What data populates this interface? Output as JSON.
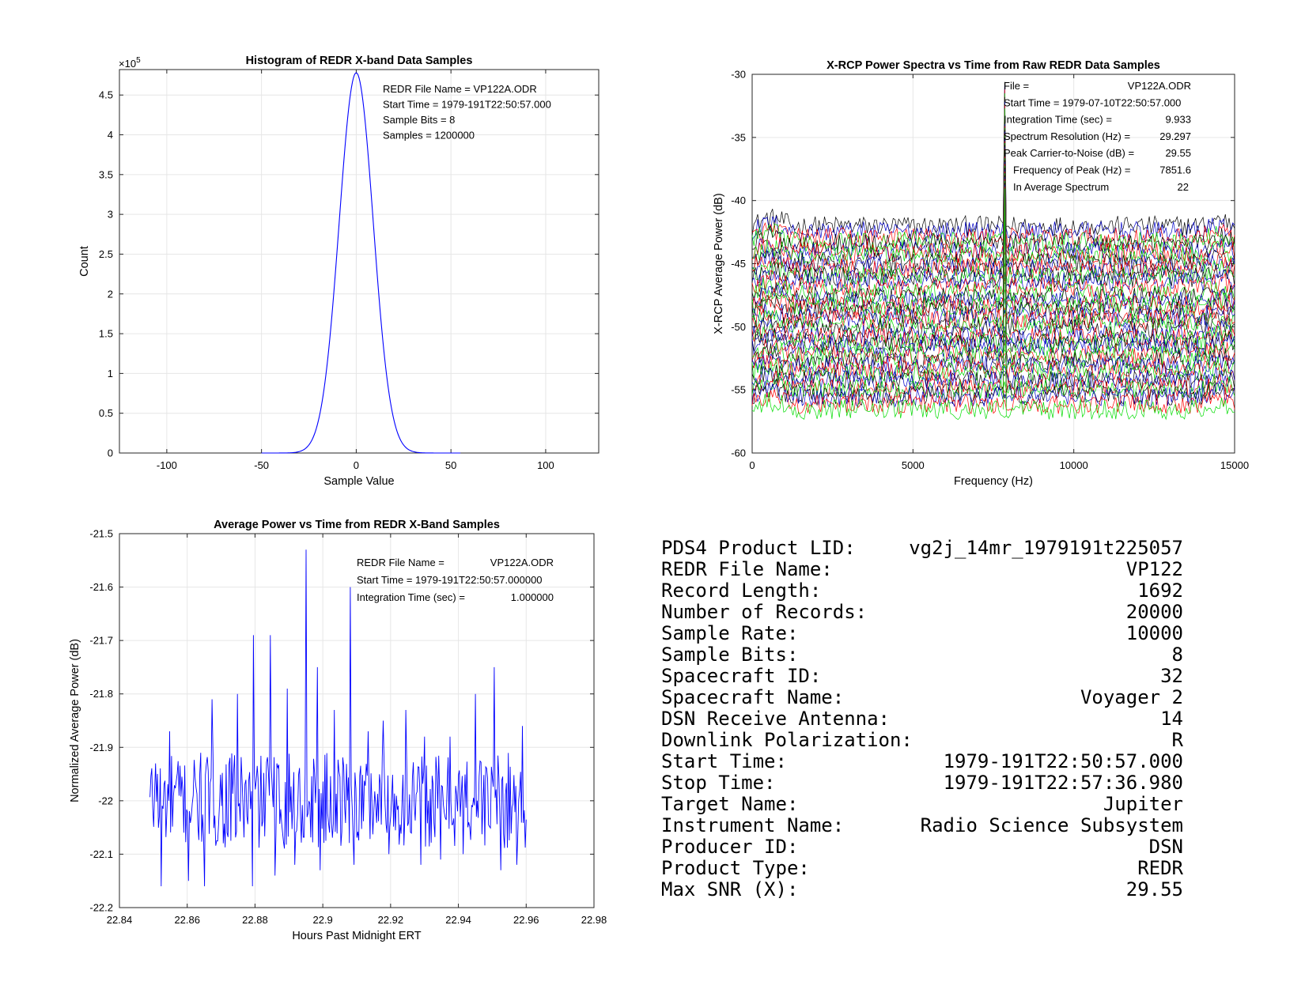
{
  "colors": {
    "line_blue": "#0000ff",
    "grid": "#e6e6e6",
    "axis": "#262626"
  },
  "chart_data": [
    {
      "type": "line",
      "title": "Histogram of REDR X-band Data Samples",
      "xlabel": "Sample Value",
      "ylabel": "Count",
      "exponent_label": "×10",
      "exponent_power": "5",
      "xlim": [
        -125,
        128
      ],
      "ylim": [
        0,
        4.82
      ],
      "xticks": [
        -100,
        -50,
        0,
        50,
        100
      ],
      "yticks": [
        0,
        0.5,
        1,
        1.5,
        2,
        2.5,
        3,
        3.5,
        4,
        4.5
      ],
      "grid": true,
      "gaussian": {
        "peak": 4.78,
        "center": 0,
        "sigma": 9.0,
        "range": [
          -50,
          55
        ]
      },
      "annotations": [
        "REDR File Name = VP122A.ODR",
        "Start Time = 1979-191T22:50:57.000",
        "Sample Bits = 8",
        "Samples = 1200000"
      ]
    },
    {
      "type": "line",
      "title": "X-RCP Power Spectra vs Time from Raw REDR Data Samples",
      "xlabel": "Frequency (Hz)",
      "ylabel": "X-RCP Average Power (dB)",
      "xlim": [
        0,
        15000
      ],
      "ylim": [
        -60,
        -30
      ],
      "xticks": [
        0,
        5000,
        10000,
        15000
      ],
      "yticks": [
        -60,
        -55,
        -50,
        -45,
        -40,
        -35,
        -30
      ],
      "grid": true,
      "series_count": 44,
      "series_colors": [
        "#000000",
        "#0000c8",
        "#ff0000",
        "#00dd00"
      ],
      "spectra_top_level": -42.0,
      "spectra_step": 0.33,
      "peak_frequency": 7851.6,
      "peak_level": -30.6,
      "annotations": [
        {
          "label": "File =",
          "value": "VP122A.ODR"
        },
        {
          "label": "Start Time = 1979-07-10T22:50:57.000",
          "value": ""
        },
        {
          "label": "Integration Time (sec) =",
          "value": "9.933"
        },
        {
          "label": "Spectrum Resolution (Hz) =",
          "value": "29.297"
        },
        {
          "label": "Peak Carrier-to-Noise (dB) =",
          "value": "29.55"
        },
        {
          "label": "Frequency of Peak (Hz) =",
          "value": "7851.6"
        },
        {
          "label": "In Average Spectrum",
          "value": "22"
        }
      ]
    },
    {
      "type": "line",
      "title": "Average Power vs Time from REDR X-Band Samples",
      "xlabel": "Hours Past Midnight ERT",
      "ylabel": "Normalized Average Power (dB)",
      "xlim": [
        22.84,
        22.98
      ],
      "ylim": [
        -22.2,
        -21.5
      ],
      "xticks": [
        22.84,
        22.86,
        22.88,
        22.9,
        22.92,
        22.94,
        22.96,
        22.98
      ],
      "yticks": [
        -22.2,
        -22.1,
        -22,
        -21.9,
        -21.8,
        -21.7,
        -21.6,
        -21.5
      ],
      "grid": true,
      "x_range": [
        22.849,
        22.96
      ],
      "baseline": -22.0,
      "spikes": [
        [
          22.8508,
          -21.93
        ],
        [
          22.8548,
          -21.87
        ],
        [
          22.8672,
          -21.81
        ],
        [
          22.8748,
          -21.8
        ],
        [
          22.8795,
          -21.69
        ],
        [
          22.8845,
          -21.69
        ],
        [
          22.8895,
          -21.79
        ],
        [
          22.8952,
          -21.53
        ],
        [
          22.8985,
          -21.75
        ],
        [
          22.9035,
          -21.83
        ],
        [
          22.908,
          -21.6
        ],
        [
          22.9093,
          -21.61
        ],
        [
          22.9135,
          -21.87
        ],
        [
          22.9178,
          -21.85
        ],
        [
          22.9245,
          -21.83
        ],
        [
          22.93,
          -21.88
        ],
        [
          22.9375,
          -21.88
        ],
        [
          22.945,
          -21.8
        ],
        [
          22.9505,
          -21.75
        ],
        [
          22.9588,
          -21.86
        ]
      ],
      "dips": [
        [
          22.8522,
          -22.16
        ],
        [
          22.8605,
          -22.15
        ],
        [
          22.8652,
          -22.16
        ],
        [
          22.8792,
          -22.16
        ],
        [
          22.8858,
          -22.14
        ],
        [
          22.8918,
          -22.12
        ],
        [
          22.8992,
          -22.13
        ],
        [
          22.9092,
          -22.12
        ],
        [
          22.9195,
          -22.1
        ],
        [
          22.9288,
          -22.12
        ],
        [
          22.9348,
          -22.11
        ],
        [
          22.9415,
          -22.1
        ],
        [
          22.9525,
          -22.13
        ],
        [
          22.9572,
          -22.12
        ]
      ],
      "annotations": [
        {
          "label": "REDR File Name =",
          "value": "VP122A.ODR"
        },
        {
          "label": "Start Time = 1979-191T22:50:57.000000",
          "value": ""
        },
        {
          "label": "Integration Time (sec) =",
          "value": "1.000000"
        }
      ]
    }
  ],
  "summary": [
    {
      "label": "PDS4 Product LID:",
      "value": "vg2j_14mr_1979191t225057"
    },
    {
      "label": "REDR File Name:",
      "value": "VP122"
    },
    {
      "label": "Record Length:",
      "value": "1692"
    },
    {
      "label": "Number of Records:",
      "value": "20000"
    },
    {
      "label": "Sample Rate:",
      "value": "10000"
    },
    {
      "label": "Sample Bits:",
      "value": "8"
    },
    {
      "label": "Spacecraft ID:",
      "value": "32"
    },
    {
      "label": "Spacecraft Name:",
      "value": "Voyager 2"
    },
    {
      "label": "DSN Receive Antenna:",
      "value": "14"
    },
    {
      "label": "Downlink Polarization:",
      "value": "R"
    },
    {
      "label": "Start Time:",
      "value": "1979-191T22:50:57.000"
    },
    {
      "label": "Stop Time:",
      "value": "1979-191T22:57:36.980"
    },
    {
      "label": "Target Name:",
      "value": "Jupiter"
    },
    {
      "label": "Instrument Name:",
      "value": "Radio Science Subsystem"
    },
    {
      "label": "Producer ID:",
      "value": "DSN"
    },
    {
      "label": "Product Type:",
      "value": "REDR"
    },
    {
      "label": "Max SNR (X):",
      "value": "29.55"
    }
  ]
}
